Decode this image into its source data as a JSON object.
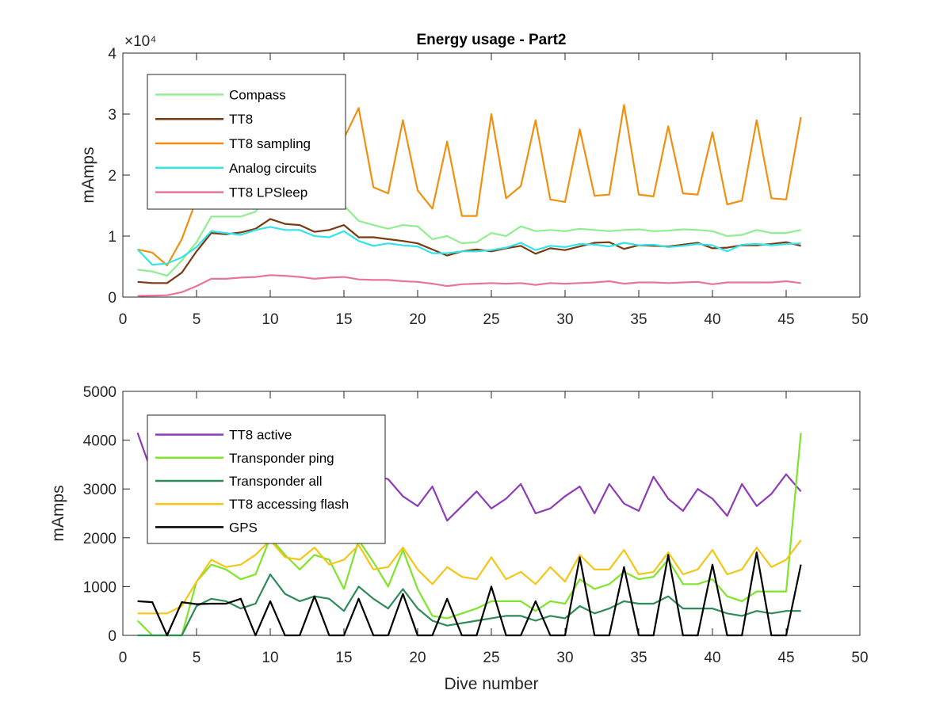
{
  "chart_data": [
    {
      "type": "line",
      "title": "Energy usage - Part2",
      "xlabel": "",
      "ylabel": "mAmps",
      "y_exponent_label": "×10⁴",
      "xlim": [
        0,
        50
      ],
      "ylim": [
        0,
        40000
      ],
      "x_ticks": [
        "0",
        "5",
        "10",
        "15",
        "20",
        "25",
        "30",
        "35",
        "40",
        "45",
        "50"
      ],
      "y_ticks": [
        "0",
        "1",
        "2",
        "3",
        "4"
      ],
      "grid": false,
      "legend_position": "top-left",
      "series": [
        {
          "name": "Compass",
          "color": "#90EE90",
          "x": [
            1,
            2,
            3,
            4,
            5,
            6,
            7,
            8,
            9,
            10,
            11,
            12,
            13,
            14,
            15,
            16,
            17,
            18,
            19,
            20,
            21,
            22,
            23,
            24,
            25,
            26,
            27,
            28,
            29,
            30,
            31,
            32,
            33,
            34,
            35,
            36,
            37,
            38,
            39,
            40,
            41,
            42,
            43,
            44,
            45,
            46
          ],
          "y": [
            4500,
            4200,
            3500,
            6000,
            9000,
            13200,
            13200,
            13200,
            14000,
            17000,
            14500,
            15000,
            15500,
            15000,
            15000,
            12500,
            11800,
            11200,
            11800,
            11600,
            9500,
            10000,
            8800,
            9000,
            10500,
            10000,
            11600,
            10800,
            11000,
            10800,
            11200,
            11000,
            10800,
            11000,
            11100,
            10800,
            10900,
            11100,
            11000,
            10800,
            10000,
            10200,
            11000,
            10500,
            10500,
            11000
          ]
        },
        {
          "name": "TT8",
          "color": "#7B3A12",
          "x": [
            1,
            2,
            3,
            4,
            5,
            6,
            7,
            8,
            9,
            10,
            11,
            12,
            13,
            14,
            15,
            16,
            17,
            18,
            19,
            20,
            21,
            22,
            23,
            24,
            25,
            26,
            27,
            28,
            29,
            30,
            31,
            32,
            33,
            34,
            35,
            36,
            37,
            38,
            39,
            40,
            41,
            42,
            43,
            44,
            45,
            46
          ],
          "y": [
            2500,
            2300,
            2300,
            4000,
            7500,
            10500,
            10300,
            10600,
            11200,
            12800,
            12000,
            11800,
            10700,
            11000,
            11800,
            9800,
            9800,
            9500,
            9200,
            8800,
            7800,
            6800,
            7500,
            7800,
            7500,
            8000,
            8400,
            7100,
            8000,
            7700,
            8300,
            8900,
            9000,
            7900,
            8500,
            8400,
            8300,
            8600,
            8900,
            8000,
            8100,
            8500,
            8500,
            8700,
            9000,
            8400
          ]
        },
        {
          "name": "TT8 sampling",
          "color": "#F0900F",
          "x": [
            1,
            2,
            3,
            4,
            5,
            6,
            7,
            8,
            9,
            10,
            11,
            12,
            13,
            14,
            15,
            16,
            17,
            18,
            19,
            20,
            21,
            22,
            23,
            24,
            25,
            26,
            27,
            28,
            29,
            30,
            31,
            32,
            33,
            34,
            35,
            36,
            37,
            38,
            39,
            40,
            41,
            42,
            43,
            44,
            45,
            46
          ],
          "y": [
            7800,
            7300,
            5200,
            9500,
            16000,
            20500,
            21000,
            22000,
            23000,
            25000,
            24000,
            23000,
            23500,
            25000,
            26000,
            31000,
            18000,
            17000,
            29000,
            17500,
            14500,
            25500,
            13300,
            13300,
            30000,
            16200,
            18200,
            29000,
            16000,
            15600,
            27500,
            16600,
            16800,
            31500,
            16800,
            16500,
            28000,
            17000,
            16800,
            27000,
            15200,
            15800,
            29000,
            16200,
            16000,
            29500
          ]
        },
        {
          "name": "Analog circuits",
          "color": "#33E4E8",
          "x": [
            1,
            2,
            3,
            4,
            5,
            6,
            7,
            8,
            9,
            10,
            11,
            12,
            13,
            14,
            15,
            16,
            17,
            18,
            19,
            20,
            21,
            22,
            23,
            24,
            25,
            26,
            27,
            28,
            29,
            30,
            31,
            32,
            33,
            34,
            35,
            36,
            37,
            38,
            39,
            40,
            41,
            42,
            43,
            44,
            45,
            46
          ],
          "y": [
            7800,
            5300,
            5500,
            6500,
            8200,
            10800,
            10500,
            10200,
            11000,
            11500,
            11000,
            11000,
            10000,
            9800,
            10800,
            9200,
            8400,
            8800,
            8500,
            8300,
            7200,
            7200,
            7500,
            7500,
            7700,
            8100,
            8900,
            7700,
            8400,
            8200,
            8700,
            8600,
            8300,
            8900,
            8500,
            8600,
            8200,
            8400,
            8700,
            8500,
            7500,
            8600,
            8700,
            8500,
            8700,
            8800
          ]
        },
        {
          "name": "TT8 LPSleep",
          "color": "#E8749E",
          "x": [
            1,
            2,
            3,
            4,
            5,
            6,
            7,
            8,
            9,
            10,
            11,
            12,
            13,
            14,
            15,
            16,
            17,
            18,
            19,
            20,
            21,
            22,
            23,
            24,
            25,
            26,
            27,
            28,
            29,
            30,
            31,
            32,
            33,
            34,
            35,
            36,
            37,
            38,
            39,
            40,
            41,
            42,
            43,
            44,
            45,
            46
          ],
          "y": [
            200,
            250,
            300,
            800,
            1800,
            3000,
            3000,
            3200,
            3300,
            3600,
            3500,
            3300,
            3000,
            3200,
            3300,
            2900,
            2800,
            2800,
            2600,
            2500,
            2200,
            1800,
            2100,
            2200,
            2300,
            2200,
            2300,
            2000,
            2300,
            2200,
            2300,
            2400,
            2600,
            2200,
            2400,
            2400,
            2300,
            2400,
            2500,
            2100,
            2400,
            2400,
            2400,
            2400,
            2600,
            2300
          ]
        }
      ]
    },
    {
      "type": "line",
      "title": "",
      "xlabel": "Dive number",
      "ylabel": "mAmps",
      "xlim": [
        0,
        50
      ],
      "ylim": [
        0,
        5000
      ],
      "x_ticks": [
        "0",
        "5",
        "10",
        "15",
        "20",
        "25",
        "30",
        "35",
        "40",
        "45",
        "50"
      ],
      "y_ticks": [
        "0",
        "1000",
        "2000",
        "3000",
        "4000",
        "5000"
      ],
      "grid": false,
      "legend_position": "top-left",
      "series": [
        {
          "name": "TT8 active",
          "color": "#8E3BB8",
          "x": [
            1,
            2,
            3,
            4,
            5,
            6,
            7,
            8,
            9,
            10,
            11,
            12,
            13,
            14,
            15,
            16,
            17,
            18,
            19,
            20,
            21,
            22,
            23,
            24,
            25,
            26,
            27,
            28,
            29,
            30,
            31,
            32,
            33,
            34,
            35,
            36,
            37,
            38,
            39,
            40,
            41,
            42,
            43,
            44,
            45,
            46
          ],
          "y": [
            4150,
            3300,
            3300,
            3300,
            3300,
            3300,
            3300,
            3300,
            3300,
            3300,
            3300,
            3300,
            3300,
            3300,
            3300,
            3300,
            3300,
            3200,
            2850,
            2650,
            3050,
            2350,
            2650,
            2950,
            2600,
            2800,
            3100,
            2500,
            2600,
            2850,
            3050,
            2500,
            3100,
            2700,
            2550,
            3250,
            2800,
            2550,
            3000,
            2800,
            2450,
            3100,
            2650,
            2900,
            3300,
            2950
          ]
        },
        {
          "name": "Transponder ping",
          "color": "#7FE52A",
          "x": [
            1,
            2,
            3,
            4,
            5,
            6,
            7,
            8,
            9,
            10,
            11,
            12,
            13,
            14,
            15,
            16,
            17,
            18,
            19,
            20,
            21,
            22,
            23,
            24,
            25,
            26,
            27,
            28,
            29,
            30,
            31,
            32,
            33,
            34,
            35,
            36,
            37,
            38,
            39,
            40,
            41,
            42,
            43,
            44,
            45,
            46
          ],
          "y": [
            300,
            0,
            0,
            0,
            1100,
            1450,
            1350,
            1150,
            1250,
            2000,
            1650,
            1350,
            1650,
            1550,
            950,
            1950,
            1500,
            1000,
            1750,
            950,
            400,
            350,
            450,
            550,
            700,
            700,
            700,
            500,
            700,
            650,
            1150,
            950,
            1050,
            1300,
            1150,
            1200,
            1550,
            1050,
            1050,
            1150,
            800,
            700,
            900,
            900,
            900,
            4150
          ]
        },
        {
          "name": "Transponder all",
          "color": "#2E8B57",
          "x": [
            1,
            2,
            3,
            4,
            5,
            6,
            7,
            8,
            9,
            10,
            11,
            12,
            13,
            14,
            15,
            16,
            17,
            18,
            19,
            20,
            21,
            22,
            23,
            24,
            25,
            26,
            27,
            28,
            29,
            30,
            31,
            32,
            33,
            34,
            35,
            36,
            37,
            38,
            39,
            40,
            41,
            42,
            43,
            44,
            45,
            46
          ],
          "y": [
            0,
            0,
            0,
            0,
            600,
            750,
            700,
            550,
            650,
            1250,
            850,
            700,
            800,
            750,
            500,
            1000,
            750,
            550,
            950,
            550,
            300,
            200,
            250,
            300,
            350,
            400,
            400,
            300,
            400,
            350,
            600,
            450,
            550,
            700,
            650,
            650,
            800,
            550,
            550,
            550,
            450,
            400,
            500,
            450,
            500,
            500
          ]
        },
        {
          "name": "TT8 accessing flash",
          "color": "#F5C518",
          "x": [
            1,
            2,
            3,
            4,
            5,
            6,
            7,
            8,
            9,
            10,
            11,
            12,
            13,
            14,
            15,
            16,
            17,
            18,
            19,
            20,
            21,
            22,
            23,
            24,
            25,
            26,
            27,
            28,
            29,
            30,
            31,
            32,
            33,
            34,
            35,
            36,
            37,
            38,
            39,
            40,
            41,
            42,
            43,
            44,
            45,
            46
          ],
          "y": [
            450,
            450,
            450,
            600,
            1100,
            1550,
            1400,
            1450,
            1650,
            1950,
            1600,
            1550,
            1800,
            1450,
            1550,
            1850,
            1350,
            1400,
            1800,
            1350,
            1050,
            1400,
            1200,
            1150,
            1600,
            1150,
            1300,
            1050,
            1400,
            1100,
            1650,
            1350,
            1350,
            1750,
            1250,
            1300,
            1700,
            1250,
            1350,
            1750,
            1250,
            1350,
            1800,
            1400,
            1550,
            1950
          ]
        },
        {
          "name": "GPS",
          "color": "#000000",
          "x": [
            1,
            2,
            3,
            4,
            5,
            6,
            7,
            8,
            9,
            10,
            11,
            12,
            13,
            14,
            15,
            16,
            17,
            18,
            19,
            20,
            21,
            22,
            23,
            24,
            25,
            26,
            27,
            28,
            29,
            30,
            31,
            32,
            33,
            34,
            35,
            36,
            37,
            38,
            39,
            40,
            41,
            42,
            43,
            44,
            45,
            46
          ],
          "y": [
            700,
            680,
            0,
            680,
            640,
            650,
            650,
            750,
            0,
            700,
            0,
            0,
            800,
            0,
            0,
            750,
            0,
            0,
            850,
            0,
            0,
            750,
            0,
            0,
            1000,
            0,
            0,
            700,
            0,
            0,
            1600,
            0,
            0,
            1400,
            0,
            0,
            1650,
            0,
            0,
            1450,
            0,
            0,
            1700,
            0,
            0,
            1450
          ]
        }
      ]
    }
  ]
}
